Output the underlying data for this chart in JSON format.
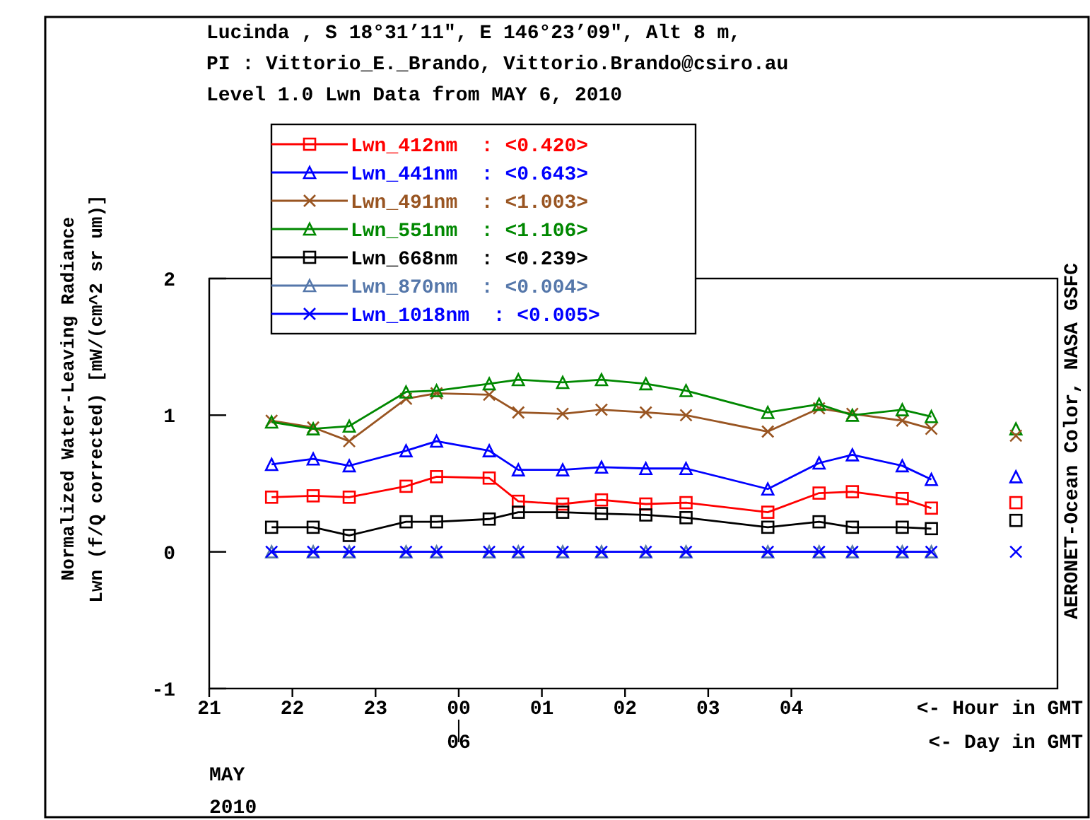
{
  "chart_data": {
    "type": "line",
    "title": "Lucinda , S 18°31’11\", E 146°23’09\", Alt 8 m,",
    "subtitle": "PI : Vittorio_E._Brando, Vittorio.Brando@csiro.au\nLevel 1.0 Lwn Data from MAY 6, 2010",
    "ylabel": "Normalized Water-Leaving Radiance\nLwn (f/Q corrected) [mW/(cm^2 sr um)]",
    "xlabel": "<- Hour in GMT",
    "annotations": [
      "06",
      "<- Day in GMT",
      "MAY",
      "2010",
      "AERONET-Ocean Color, NASA GSFC"
    ],
    "x": [
      "2010-05-05T21:45",
      "2010-05-05T22:15",
      "2010-05-05T22:41",
      "2010-05-05T23:22",
      "2010-05-05T23:44",
      "2010-05-06T00:22",
      "2010-05-06T00:43",
      "2010-05-06T01:15",
      "2010-05-06T01:43",
      "2010-05-06T02:15",
      "2010-05-06T02:44",
      "2010-05-06T03:43",
      "2010-05-06T04:20",
      "2010-05-06T04:44",
      "2010-05-06T05:20",
      "2010-05-06T05:41"
    ],
    "xlim": [
      "2010-05-05T21:00",
      "2010-05-06T07:12"
    ],
    "xticks": [
      {
        "value": "2010-05-05T21:00",
        "label": "21"
      },
      {
        "value": "2010-05-05T22:00",
        "label": "22"
      },
      {
        "value": "2010-05-05T23:00",
        "label": "23"
      },
      {
        "value": "2010-05-06T00:00",
        "label": "00"
      },
      {
        "value": "2010-05-06T01:00",
        "label": "01"
      },
      {
        "value": "2010-05-06T02:00",
        "label": "02"
      },
      {
        "value": "2010-05-06T03:00",
        "label": "03"
      },
      {
        "value": "2010-05-06T04:00",
        "label": "04"
      }
    ],
    "ylim": [
      -1,
      2
    ],
    "yticks": [
      -1,
      0,
      1,
      2
    ],
    "grid": false,
    "legend": "top left",
    "line_style": "solid",
    "series": [
      {
        "name": "Lwn_412nm  : <0.420>",
        "color": "#ff0000",
        "marker": "square",
        "values": [
          0.4,
          0.41,
          0.4,
          0.48,
          0.55,
          0.54,
          0.37,
          0.35,
          0.38,
          0.35,
          0.36,
          0.29,
          0.43,
          0.44,
          0.39,
          0.32
        ]
      },
      {
        "name": "Lwn_441nm  : <0.643>",
        "color": "#0000ff",
        "marker": "triangle",
        "values": [
          0.64,
          0.68,
          0.63,
          0.74,
          0.81,
          0.74,
          0.6,
          0.6,
          0.62,
          0.61,
          0.61,
          0.46,
          0.65,
          0.71,
          0.63,
          0.53
        ]
      },
      {
        "name": "Lwn_491nm  : <1.003>",
        "color": "#995522",
        "marker": "cross",
        "values": [
          0.96,
          0.91,
          0.81,
          1.12,
          1.16,
          1.15,
          1.02,
          1.01,
          1.04,
          1.02,
          1.0,
          0.88,
          1.05,
          1.01,
          0.96,
          0.9
        ]
      },
      {
        "name": "Lwn_551nm  : <1.106>",
        "color": "#008800",
        "marker": "triangle",
        "values": [
          0.95,
          0.9,
          0.92,
          1.17,
          1.18,
          1.23,
          1.26,
          1.24,
          1.26,
          1.23,
          1.18,
          1.02,
          1.08,
          1.0,
          1.04,
          0.99
        ]
      },
      {
        "name": "Lwn_668nm  : <0.239>",
        "color": "#000000",
        "marker": "square",
        "values": [
          0.18,
          0.18,
          0.12,
          0.22,
          0.22,
          0.24,
          0.29,
          0.29,
          0.28,
          0.27,
          0.25,
          0.18,
          0.22,
          0.18,
          0.18,
          0.17
        ]
      },
      {
        "name": "Lwn_870nm  : <0.004>",
        "color": "#5577aa",
        "marker": "triangle",
        "values": [
          0,
          0,
          0,
          0,
          0,
          0,
          0,
          0,
          0,
          0,
          0,
          0,
          0,
          0,
          0,
          0
        ]
      },
      {
        "name": "Lwn_1018nm  : <0.005>",
        "color": "#0000ff",
        "marker": "cross",
        "values": [
          0,
          0,
          0,
          0,
          0,
          0,
          0,
          0,
          0,
          0,
          0,
          0,
          0,
          0,
          0,
          0
        ]
      },
      {
        "type": "scatter",
        "color": "#008800",
        "marker": "triangle",
        "x": [
          "2010-05-06T06:42"
        ],
        "values": [
          0.9
        ]
      },
      {
        "type": "scatter",
        "color": "#995522",
        "marker": "cross",
        "x": [
          "2010-05-06T06:42"
        ],
        "values": [
          0.85
        ]
      },
      {
        "type": "scatter",
        "color": "#0000ff",
        "marker": "triangle",
        "x": [
          "2010-05-06T06:42"
        ],
        "values": [
          0.55
        ]
      },
      {
        "type": "scatter",
        "color": "#ff0000",
        "marker": "square",
        "x": [
          "2010-05-06T06:42"
        ],
        "values": [
          0.36
        ]
      },
      {
        "type": "scatter",
        "color": "#000000",
        "marker": "square",
        "x": [
          "2010-05-06T06:42"
        ],
        "values": [
          0.23
        ]
      },
      {
        "type": "scatter",
        "color": "#0000ff",
        "marker": "cross",
        "x": [
          "2010-05-06T06:42"
        ],
        "values": [
          0.0
        ]
      }
    ]
  }
}
